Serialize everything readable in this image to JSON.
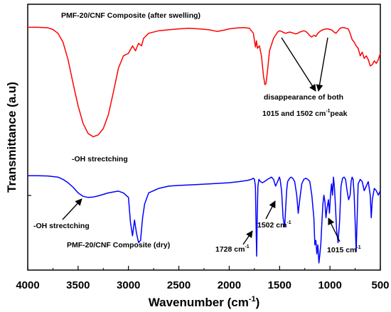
{
  "chart_data": {
    "type": "line",
    "title": "",
    "xlabel": "Wavenumber (cm",
    "xlabel_sup": "-1",
    "xlabel_end": ")",
    "ylabel": "Transmittance (a.u)",
    "xlim": [
      4000,
      500
    ],
    "x_reversed": true,
    "xticks": [
      4000,
      3500,
      3000,
      2500,
      2000,
      1500,
      1000,
      500
    ],
    "xtick_labels": [
      "4000",
      "3500",
      "3000",
      "2500",
      "2000",
      "1500",
      "1000",
      "500"
    ],
    "yaxis_values_shown": false,
    "grid": false,
    "series": [
      {
        "name": "PMF-20/CNF Composite (after swelling)",
        "color": "#ff0000",
        "x": [
          4000,
          3900,
          3800,
          3750,
          3700,
          3650,
          3600,
          3550,
          3500,
          3450,
          3400,
          3350,
          3300,
          3250,
          3200,
          3150,
          3100,
          3050,
          3000,
          2960,
          2930,
          2900,
          2870,
          2850,
          2800,
          2700,
          2600,
          2500,
          2400,
          2300,
          2200,
          2120,
          2050,
          2000,
          1950,
          1900,
          1850,
          1800,
          1760,
          1740,
          1730,
          1720,
          1700,
          1680,
          1660,
          1645,
          1635,
          1620,
          1600,
          1560,
          1520,
          1500,
          1480,
          1460,
          1440,
          1420,
          1400,
          1380,
          1360,
          1340,
          1320,
          1300,
          1280,
          1260,
          1240,
          1220,
          1200,
          1180,
          1160,
          1140,
          1120,
          1100,
          1080,
          1060,
          1040,
          1020,
          1000,
          980,
          960,
          940,
          920,
          900,
          880,
          860,
          840,
          820,
          800,
          780,
          760,
          740,
          720,
          700,
          680,
          660,
          640,
          620,
          600,
          580,
          560,
          540,
          520,
          500
        ],
        "values": [
          0.948,
          0.948,
          0.944,
          0.93,
          0.9,
          0.83,
          0.69,
          0.5,
          0.32,
          0.18,
          0.1,
          0.075,
          0.09,
          0.14,
          0.25,
          0.43,
          0.62,
          0.72,
          0.74,
          0.8,
          0.76,
          0.82,
          0.8,
          0.86,
          0.9,
          0.92,
          0.928,
          0.935,
          0.94,
          0.935,
          0.928,
          0.915,
          0.925,
          0.935,
          0.94,
          0.944,
          0.945,
          0.94,
          0.9,
          0.79,
          0.84,
          0.78,
          0.8,
          0.72,
          0.56,
          0.49,
          0.5,
          0.6,
          0.76,
          0.86,
          0.91,
          0.92,
          0.915,
          0.905,
          0.9,
          0.905,
          0.91,
          0.905,
          0.9,
          0.895,
          0.9,
          0.91,
          0.915,
          0.92,
          0.915,
          0.9,
          0.88,
          0.87,
          0.885,
          0.875,
          0.9,
          0.915,
          0.925,
          0.93,
          0.935,
          0.935,
          0.93,
          0.925,
          0.91,
          0.9,
          0.92,
          0.94,
          0.945,
          0.945,
          0.94,
          0.935,
          0.9,
          0.85,
          0.83,
          0.8,
          0.78,
          0.72,
          0.75,
          0.7,
          0.72,
          0.69,
          0.64,
          0.65,
          0.68,
          0.66,
          0.69,
          0.74
        ]
      },
      {
        "name": "PMF-20/CNF Composite (dry)",
        "color": "#0000ff",
        "x": [
          4000,
          3900,
          3800,
          3700,
          3650,
          3600,
          3550,
          3500,
          3450,
          3400,
          3350,
          3300,
          3200,
          3100,
          3050,
          3000,
          2980,
          2960,
          2940,
          2920,
          2900,
          2880,
          2860,
          2840,
          2800,
          2700,
          2600,
          2500,
          2400,
          2200,
          2000,
          1900,
          1820,
          1780,
          1760,
          1750,
          1740,
          1735,
          1728,
          1722,
          1715,
          1705,
          1690,
          1670,
          1650,
          1620,
          1600,
          1580,
          1560,
          1540,
          1520,
          1502,
          1495,
          1480,
          1465,
          1450,
          1440,
          1430,
          1420,
          1400,
          1385,
          1370,
          1350,
          1330,
          1315,
          1300,
          1280,
          1260,
          1240,
          1220,
          1200,
          1180,
          1160,
          1150,
          1140,
          1130,
          1120,
          1110,
          1100,
          1090,
          1080,
          1070,
          1060,
          1050,
          1040,
          1030,
          1015,
          1005,
          995,
          985,
          975,
          965,
          955,
          945,
          935,
          920,
          905,
          890,
          875,
          860,
          845,
          830,
          815,
          800,
          790,
          780,
          770,
          760,
          750,
          740,
          730,
          720,
          700,
          680,
          660,
          640,
          620,
          600,
          590,
          580,
          560,
          540,
          520,
          500
        ],
        "values": [
          0.386,
          0.386,
          0.385,
          0.38,
          0.37,
          0.355,
          0.335,
          0.31,
          0.295,
          0.29,
          0.292,
          0.297,
          0.31,
          0.318,
          0.31,
          0.29,
          0.18,
          0.12,
          0.19,
          0.13,
          0.09,
          0.1,
          0.2,
          0.26,
          0.31,
          0.33,
          0.34,
          0.343,
          0.345,
          0.35,
          0.355,
          0.36,
          0.365,
          0.37,
          0.375,
          0.37,
          0.34,
          0.2,
          0.03,
          0.2,
          0.34,
          0.37,
          0.36,
          0.355,
          0.36,
          0.37,
          0.375,
          0.38,
          0.37,
          0.34,
          0.36,
          0.38,
          0.37,
          0.32,
          0.2,
          0.16,
          0.24,
          0.32,
          0.36,
          0.375,
          0.38,
          0.375,
          0.36,
          0.3,
          0.22,
          0.28,
          0.35,
          0.37,
          0.375,
          0.37,
          0.36,
          0.3,
          0.2,
          0.08,
          0.1,
          0.04,
          0.08,
          0.0,
          0.04,
          0.09,
          0.18,
          0.26,
          0.3,
          0.27,
          0.2,
          0.24,
          0.28,
          0.22,
          0.3,
          0.35,
          0.3,
          0.38,
          0.33,
          0.25,
          0.15,
          0.09,
          0.18,
          0.34,
          0.375,
          0.38,
          0.37,
          0.32,
          0.28,
          0.3,
          0.36,
          0.38,
          0.37,
          0.3,
          0.18,
          0.05,
          0.2,
          0.35,
          0.37,
          0.36,
          0.32,
          0.34,
          0.36,
          0.3,
          0.2,
          0.28,
          0.33,
          0.32,
          0.3,
          0.32
        ]
      }
    ],
    "annotations": {
      "top_title": "PMF-20/CNF Composite (after swelling)",
      "bottom_title": "PMF-20/CNF Composite (dry)",
      "oh_top": "-OH strectching",
      "oh_bottom": "-OH strectching",
      "disappear_line1": "disappearance of both",
      "disappear_line2a": "1015 and 1502 cm",
      "disappear_line2sup": "-1",
      "disappear_line2b": "peak",
      "peak_1728": "1728 cm",
      "peak_1728_sup": "-1",
      "peak_1502": "1502 cm",
      "peak_1502_sup": "-1",
      "peak_1015": "1015 cm",
      "peak_1015_sup": "-1"
    }
  }
}
